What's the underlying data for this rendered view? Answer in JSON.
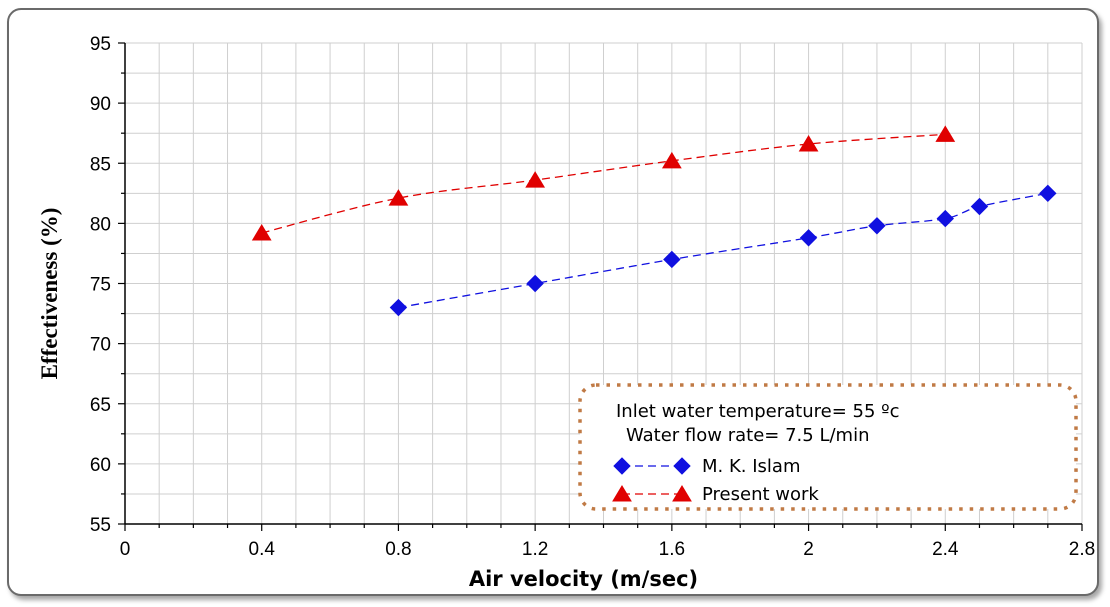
{
  "chart_data": {
    "type": "scatter",
    "xlabel": "Air velocity (m/sec)",
    "ylabel": "Effectiveness (%)",
    "xlim": [
      0,
      2.8
    ],
    "ylim": [
      55,
      95
    ],
    "xticks": [
      0,
      0.4,
      0.8,
      1.2,
      1.6,
      2,
      2.4,
      2.8
    ],
    "xtick_labels": [
      "0",
      "0.4",
      "0.8",
      "1.2",
      "1.6",
      "2",
      "2.4",
      "2.8"
    ],
    "yticks": [
      55,
      60,
      65,
      70,
      75,
      80,
      85,
      90,
      95
    ],
    "ytick_labels": [
      "55",
      "60",
      "65",
      "70",
      "75",
      "80",
      "85",
      "90",
      "95"
    ],
    "grid": true,
    "legend_placement": "bottom-right",
    "annotations": [
      "Inlet water temperature= 55 ºc",
      "Water flow rate= 7.5 L/min"
    ],
    "series": [
      {
        "name": "M. K. Islam",
        "marker": "diamond",
        "color": "#1010e0",
        "x": [
          0.8,
          1.2,
          1.6,
          2.0,
          2.2,
          2.4,
          2.5,
          2.7
        ],
        "y": [
          73.0,
          75.0,
          77.0,
          78.8,
          79.8,
          80.4,
          81.4,
          82.5
        ]
      },
      {
        "name": "Present work",
        "marker": "triangle",
        "color": "#e00000",
        "x": [
          0.4,
          0.8,
          1.2,
          1.6,
          2.0,
          2.4
        ],
        "y": [
          79.2,
          82.1,
          83.6,
          85.2,
          86.6,
          87.4
        ]
      }
    ]
  }
}
